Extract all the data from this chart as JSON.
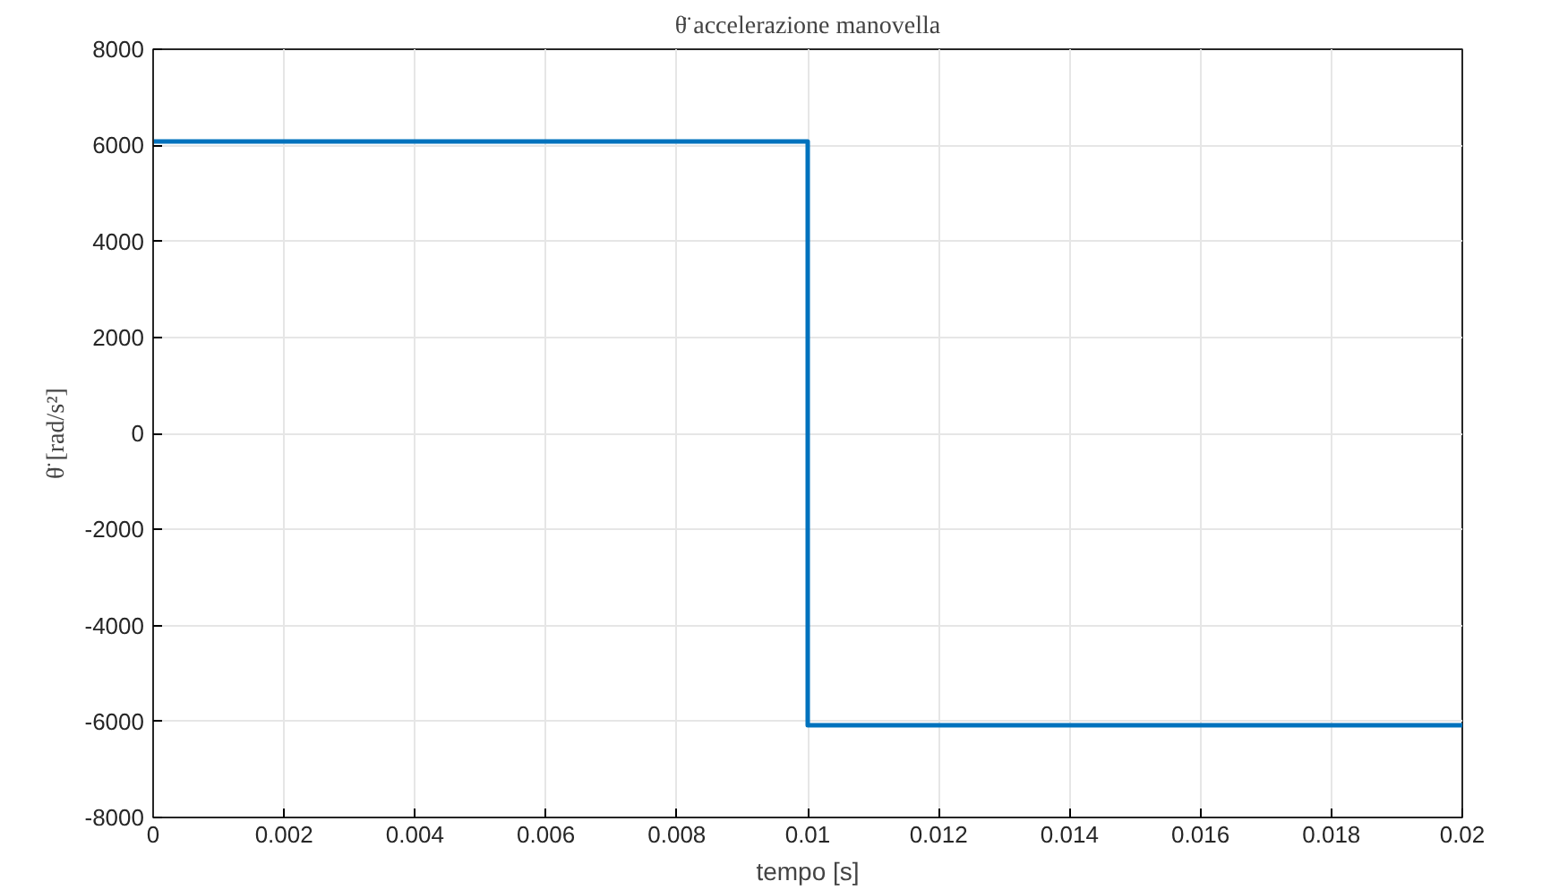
{
  "chart_data": {
    "type": "line",
    "title": "θ̈ accelerazione manovella",
    "xlabel": "tempo [s]",
    "ylabel": "θ̈ [rad/s²]",
    "x": [
      0,
      0.01,
      0.01,
      0.02
    ],
    "series": [
      {
        "color": "#0072bd",
        "values": [
          6080,
          6080,
          -6080,
          -6080
        ]
      }
    ],
    "xlim": [
      0,
      0.02
    ],
    "xticks": [
      0,
      0.002,
      0.004,
      0.006,
      0.008,
      0.01,
      0.012,
      0.014,
      0.016,
      0.018,
      0.02
    ],
    "ylim": [
      -8000,
      8000
    ],
    "yticks": [
      -8000,
      -6000,
      -4000,
      -2000,
      0,
      2000,
      4000,
      6000,
      8000
    ],
    "grid": true,
    "line_style": "solid",
    "marker": "none"
  }
}
